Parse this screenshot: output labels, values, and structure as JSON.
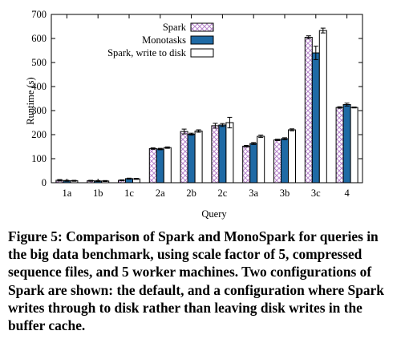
{
  "chart_data": {
    "type": "bar",
    "xlabel": "Query",
    "ylabel": "Runtime (s)",
    "ylim": [
      0,
      700
    ],
    "yticks": [
      0,
      100,
      200,
      300,
      400,
      500,
      600,
      700
    ],
    "grid": false,
    "legend_position": "top-left",
    "categories": [
      "1a",
      "1b",
      "1c",
      "2a",
      "2b",
      "2c",
      "3a",
      "3b",
      "3c",
      "4"
    ],
    "series": [
      {
        "name": "Spark",
        "pattern": "crosshatch",
        "color": "#c9a0d8",
        "values": [
          10,
          8,
          10,
          142,
          213,
          237,
          152,
          178,
          605,
          313
        ],
        "errors": [
          3,
          2,
          2,
          3,
          10,
          10,
          3,
          3,
          6,
          3
        ]
      },
      {
        "name": "Monotasks",
        "pattern": "solid",
        "color": "#1f6aa5",
        "values": [
          8,
          7,
          17,
          140,
          202,
          240,
          163,
          183,
          540,
          325
        ],
        "errors": [
          2,
          2,
          2,
          3,
          4,
          6,
          4,
          4,
          28,
          6
        ]
      },
      {
        "name": "Spark, write to disk",
        "pattern": "empty",
        "color": "#ffffff",
        "values": [
          8,
          7,
          16,
          146,
          215,
          250,
          193,
          220,
          633,
          313
        ],
        "errors": [
          2,
          2,
          2,
          3,
          5,
          22,
          5,
          4,
          10,
          2
        ]
      }
    ]
  },
  "caption": "Figure 5: Comparison of Spark and MonoSpark for queries in the big data benchmark, using scale factor of 5, compressed sequence files, and 5 worker machines. Two configurations of Spark are shown: the default, and a configuration where Spark writes through to disk rather than leaving disk writes in the buffer cache."
}
